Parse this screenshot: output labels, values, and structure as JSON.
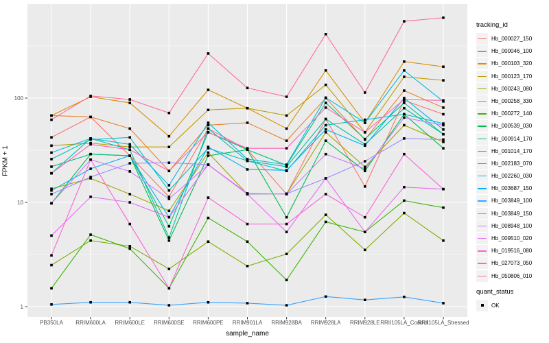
{
  "chart_data": {
    "type": "line",
    "title": "",
    "xlabel": "sample_name",
    "ylabel": "FPKM + 1",
    "y_scale": "log10",
    "y_major_ticks": [
      1,
      10,
      100
    ],
    "y_minor_ticks": [
      3.162,
      31.62,
      316.2
    ],
    "ylim": [
      1,
      790
    ],
    "grid": "white-on-grey-panel",
    "legend_position": "right",
    "legend_title": "tracking_id",
    "point_shape": "filled-black-square",
    "categories": [
      "PB350LA",
      "RRIM600LA",
      "RRIM600LE",
      "RRIM600SE",
      "RRIM600PE",
      "RRIM901LA",
      "RRIM928BA",
      "RRIM928LA",
      "RRIM928LE",
      "RRII105LA_Control",
      "RRII105LA_Stressed"
    ],
    "series": [
      {
        "name": "Hb_000027_150",
        "color": "#F8766D",
        "values": [
          42,
          66,
          28,
          11.3,
          51,
          32,
          12,
          63,
          14.2,
          95,
          70
        ]
      },
      {
        "name": "Hb_000046_100",
        "color": "#EA8331",
        "values": [
          68,
          66,
          51,
          20,
          55,
          58,
          39,
          100,
          40,
          118,
          81
        ]
      },
      {
        "name": "Hb_000103_320",
        "color": "#D89000",
        "values": [
          68,
          103,
          90,
          43,
          120,
          80,
          51,
          184,
          58,
          224,
          200
        ]
      },
      {
        "name": "Hb_000123_170",
        "color": "#C09B00",
        "values": [
          35,
          37,
          34,
          34,
          77,
          80,
          68,
          134,
          47,
          160,
          148
        ]
      },
      {
        "name": "Hb_000243_080",
        "color": "#A3A500",
        "values": [
          13.5,
          17,
          12,
          8.3,
          30,
          12,
          12.1,
          47,
          21.9,
          55,
          38
        ]
      },
      {
        "name": "Hb_000258_330",
        "color": "#7CAE00",
        "values": [
          2.5,
          4.3,
          3.8,
          2.3,
          4.2,
          2.45,
          3.2,
          7.6,
          3.5,
          7.9,
          4.3
        ]
      },
      {
        "name": "Hb_000272_140",
        "color": "#39B600",
        "values": [
          1.5,
          4.9,
          3.6,
          1.5,
          7.1,
          4.2,
          1.8,
          6.5,
          5.2,
          10.4,
          8.9
        ]
      },
      {
        "name": "Hb_000539_030",
        "color": "#00BB4E",
        "values": [
          9.8,
          29,
          28,
          4.3,
          28,
          32,
          7.2,
          39,
          20,
          70,
          33
        ]
      },
      {
        "name": "Hb_000914_170",
        "color": "#00BF7D",
        "values": [
          22,
          29,
          28,
          5.9,
          47,
          32,
          22.7,
          90,
          40.5,
          90,
          45
        ]
      },
      {
        "name": "Hb_001014_170",
        "color": "#00C1A3",
        "values": [
          19,
          41,
          32,
          4.6,
          51,
          25,
          22,
          63,
          36,
          80,
          45
        ]
      },
      {
        "name": "Hb_002183_070",
        "color": "#00C0C4",
        "values": [
          26,
          40,
          42,
          13,
          33,
          25,
          20,
          55,
          62,
          70,
          57
        ]
      },
      {
        "name": "Hb_002260_030",
        "color": "#00BAE0",
        "values": [
          30,
          41,
          36,
          14.6,
          58,
          26,
          23,
          101,
          58,
          184,
          93
        ]
      },
      {
        "name": "Hb_003687_150",
        "color": "#00B0F6",
        "values": [
          13,
          21,
          28,
          7.2,
          34,
          20.7,
          20.3,
          50,
          35,
          100,
          50
        ]
      },
      {
        "name": "Hb_003849_100",
        "color": "#35A2FF",
        "values": [
          1.05,
          1.1,
          1.1,
          1.03,
          1.1,
          1.08,
          1.03,
          1.25,
          1.16,
          1.24,
          1.08
        ]
      },
      {
        "name": "Hb_003849_150",
        "color": "#9590FF",
        "values": [
          12,
          17.5,
          23.7,
          24,
          23,
          12,
          12.1,
          17,
          24.8,
          41,
          40
        ]
      },
      {
        "name": "Hb_008948_100",
        "color": "#C77CFF",
        "values": [
          9.8,
          25.7,
          19.8,
          10.8,
          23,
          12.2,
          12,
          29,
          21,
          65,
          55
        ]
      },
      {
        "name": "Hb_009510_020",
        "color": "#E76BF3",
        "values": [
          4.8,
          11.3,
          10,
          7.2,
          23,
          12,
          5.2,
          17,
          5.2,
          14,
          13.4
        ]
      },
      {
        "name": "Hb_019516_080",
        "color": "#FA62DB",
        "values": [
          3.1,
          25.7,
          6.2,
          1.5,
          11.1,
          6.2,
          6.2,
          12,
          7.2,
          29,
          13.4
        ]
      },
      {
        "name": "Hb_027073_050",
        "color": "#FF62BC",
        "values": [
          19,
          36,
          32,
          20,
          47,
          33,
          33,
          81,
          47,
          97,
          95
        ]
      },
      {
        "name": "Hb_050806_010",
        "color": "#FF6A98",
        "values": [
          62,
          105,
          97,
          72,
          268,
          125,
          103,
          410,
          113,
          545,
          590
        ]
      }
    ],
    "quant_legend": {
      "title": "quant_status",
      "items": [
        {
          "label": "OK",
          "shape": "filled-black-square"
        }
      ]
    },
    "colors": {
      "panel_background": "#EBEBEB",
      "gridline": "#FFFFFF",
      "legend_key_background": "#F2F2F2",
      "point": "#000000",
      "axis_text": "#4D4D4D",
      "axis_tick": "#333333",
      "title_text": "#000000"
    }
  }
}
